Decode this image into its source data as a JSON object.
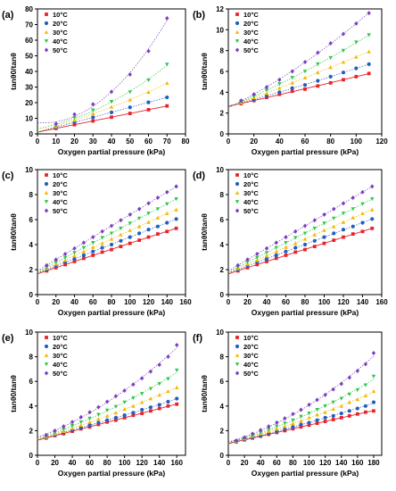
{
  "legend_labels": [
    "10°C",
    "20°C",
    "30°C",
    "40°C",
    "50°C"
  ],
  "colors": [
    "#e8232a",
    "#1f5fbf",
    "#f5b800",
    "#2ec84a",
    "#7a3fbf"
  ],
  "chart_data": [
    {
      "panel": "(a)",
      "type": "scatter",
      "xlabel": "Oxygen partial pressure (kPa)",
      "ylabel": "tanθ0/tanθ",
      "xlim": [
        0,
        80
      ],
      "ylim": [
        0,
        80
      ],
      "xticks": [
        0,
        10,
        20,
        30,
        40,
        50,
        60,
        70,
        80
      ],
      "yticks": [
        0,
        10,
        20,
        30,
        40,
        50,
        60,
        70,
        80
      ],
      "x": [
        10,
        20,
        30,
        40,
        50,
        60,
        70
      ],
      "series": [
        {
          "name": "10°C",
          "values": [
            3.5,
            5.9,
            8.3,
            10.7,
            13.1,
            15.5,
            17.9
          ]
        },
        {
          "name": "20°C",
          "values": [
            4.2,
            7.4,
            10.6,
            13.8,
            17.0,
            20.2,
            23.4
          ]
        },
        {
          "name": "30°C",
          "values": [
            4.8,
            8.9,
            13.0,
            17.3,
            21.8,
            26.8,
            32.5
          ]
        },
        {
          "name": "40°C",
          "values": [
            5.6,
            10.3,
            15.2,
            20.6,
            26.8,
            34.4,
            44.5
          ]
        },
        {
          "name": "50°C",
          "values": [
            6.5,
            12.5,
            19.0,
            27.0,
            38.0,
            53.0,
            74.0
          ]
        }
      ],
      "legend": "top-left"
    },
    {
      "panel": "(b)",
      "type": "scatter",
      "xlabel": "Oxygen partial pressure (kPa)",
      "ylabel": "tanθ0/tanθ",
      "xlim": [
        0,
        120
      ],
      "ylim": [
        0,
        12
      ],
      "xticks": [
        0,
        20,
        40,
        60,
        80,
        100,
        120
      ],
      "yticks": [
        0,
        2,
        4,
        6,
        8,
        10,
        12
      ],
      "x": [
        10,
        20,
        30,
        40,
        50,
        60,
        70,
        80,
        90,
        100,
        110
      ],
      "series": [
        {
          "name": "10°C",
          "values": [
            2.9,
            3.2,
            3.5,
            3.8,
            4.1,
            4.3,
            4.6,
            4.9,
            5.2,
            5.5,
            5.8
          ]
        },
        {
          "name": "20°C",
          "values": [
            3.0,
            3.3,
            3.7,
            4.0,
            4.4,
            4.7,
            5.1,
            5.5,
            5.9,
            6.3,
            6.7
          ]
        },
        {
          "name": "30°C",
          "values": [
            3.0,
            3.5,
            3.9,
            4.4,
            4.9,
            5.4,
            5.9,
            6.4,
            6.9,
            7.4,
            7.9
          ]
        },
        {
          "name": "40°C",
          "values": [
            3.1,
            3.6,
            4.2,
            4.8,
            5.4,
            6.0,
            6.7,
            7.3,
            8.0,
            8.8,
            9.5
          ]
        },
        {
          "name": "50°C",
          "values": [
            3.2,
            3.8,
            4.5,
            5.2,
            6.0,
            6.9,
            7.8,
            8.7,
            9.6,
            10.6,
            11.6
          ]
        }
      ],
      "legend": "top-left"
    },
    {
      "panel": "(c)",
      "type": "scatter",
      "xlabel": "Oxygen partial pressure (kPa)",
      "ylabel": "tanθ0/tanθ",
      "xlim": [
        0,
        160
      ],
      "ylim": [
        0,
        10
      ],
      "xticks": [
        0,
        20,
        40,
        60,
        80,
        100,
        120,
        140,
        160
      ],
      "yticks": [
        0,
        2,
        4,
        6,
        8,
        10
      ],
      "x": [
        10,
        20,
        30,
        40,
        50,
        60,
        70,
        80,
        90,
        100,
        110,
        120,
        130,
        140,
        150
      ],
      "series": [
        {
          "name": "10°C",
          "values": [
            1.9,
            2.15,
            2.4,
            2.65,
            2.9,
            3.15,
            3.4,
            3.6,
            3.85,
            4.1,
            4.35,
            4.6,
            4.85,
            5.05,
            5.3
          ]
        },
        {
          "name": "20°C",
          "values": [
            2.0,
            2.3,
            2.6,
            2.85,
            3.15,
            3.45,
            3.75,
            4.0,
            4.3,
            4.6,
            4.9,
            5.2,
            5.45,
            5.75,
            6.05
          ]
        },
        {
          "name": "30°C",
          "values": [
            2.1,
            2.45,
            2.75,
            3.1,
            3.45,
            3.8,
            4.1,
            4.45,
            4.8,
            5.15,
            5.45,
            5.8,
            6.15,
            6.5,
            6.8
          ]
        },
        {
          "name": "40°C",
          "values": [
            2.2,
            2.6,
            2.95,
            3.35,
            3.75,
            4.15,
            4.55,
            4.9,
            5.3,
            5.7,
            6.1,
            6.5,
            6.85,
            7.25,
            7.65
          ]
        },
        {
          "name": "50°C",
          "values": [
            2.35,
            2.8,
            3.25,
            3.7,
            4.15,
            4.6,
            5.05,
            5.5,
            5.95,
            6.4,
            6.85,
            7.3,
            7.75,
            8.2,
            8.65
          ]
        }
      ],
      "legend": "top-left"
    },
    {
      "panel": "(d)",
      "type": "scatter",
      "xlabel": "Oxygen partial pressure (kPa)",
      "ylabel": "tanθ0/tanθ",
      "xlim": [
        0,
        160
      ],
      "ylim": [
        0,
        10
      ],
      "xticks": [
        0,
        20,
        40,
        60,
        80,
        100,
        120,
        140,
        160
      ],
      "yticks": [
        0,
        2,
        4,
        6,
        8,
        10
      ],
      "x": [
        10,
        20,
        30,
        40,
        50,
        60,
        70,
        80,
        90,
        100,
        110,
        120,
        130,
        140,
        150
      ],
      "series": [
        {
          "name": "10°C",
          "values": [
            1.9,
            2.15,
            2.4,
            2.65,
            2.9,
            3.15,
            3.4,
            3.6,
            3.85,
            4.1,
            4.35,
            4.6,
            4.85,
            5.05,
            5.3
          ]
        },
        {
          "name": "20°C",
          "values": [
            2.0,
            2.3,
            2.6,
            2.85,
            3.15,
            3.45,
            3.75,
            4.0,
            4.3,
            4.6,
            4.9,
            5.2,
            5.45,
            5.75,
            6.05
          ]
        },
        {
          "name": "30°C",
          "values": [
            2.1,
            2.45,
            2.75,
            3.1,
            3.45,
            3.8,
            4.1,
            4.45,
            4.8,
            5.15,
            5.45,
            5.8,
            6.15,
            6.5,
            6.8
          ]
        },
        {
          "name": "40°C",
          "values": [
            2.2,
            2.6,
            2.95,
            3.35,
            3.75,
            4.15,
            4.55,
            4.9,
            5.3,
            5.7,
            6.1,
            6.5,
            6.85,
            7.25,
            7.65
          ]
        },
        {
          "name": "50°C",
          "values": [
            2.35,
            2.8,
            3.25,
            3.7,
            4.15,
            4.6,
            5.05,
            5.5,
            5.95,
            6.4,
            6.85,
            7.3,
            7.75,
            8.2,
            8.65
          ]
        }
      ],
      "legend": "top-left"
    },
    {
      "panel": "(e)",
      "type": "scatter",
      "xlabel": "Oxygen partial pressure (kPa)",
      "ylabel": "tanθ0/tanθ",
      "xlim": [
        0,
        170
      ],
      "ylim": [
        0,
        10
      ],
      "xticks": [
        0,
        20,
        40,
        60,
        80,
        100,
        120,
        140,
        160
      ],
      "yticks": [
        0,
        2,
        4,
        6,
        8,
        10
      ],
      "x": [
        10,
        20,
        30,
        40,
        50,
        60,
        70,
        80,
        90,
        100,
        110,
        120,
        130,
        140,
        150,
        160
      ],
      "series": [
        {
          "name": "10°C",
          "values": [
            1.4,
            1.6,
            1.75,
            1.95,
            2.15,
            2.3,
            2.5,
            2.7,
            2.85,
            3.05,
            3.25,
            3.4,
            3.6,
            3.8,
            4.0,
            4.15
          ]
        },
        {
          "name": "20°C",
          "values": [
            1.45,
            1.65,
            1.85,
            2.05,
            2.25,
            2.45,
            2.65,
            2.85,
            3.05,
            3.25,
            3.45,
            3.7,
            3.9,
            4.1,
            4.35,
            4.6
          ]
        },
        {
          "name": "30°C",
          "values": [
            1.5,
            1.75,
            1.95,
            2.2,
            2.45,
            2.7,
            2.95,
            3.2,
            3.45,
            3.75,
            4.0,
            4.3,
            4.6,
            4.9,
            5.2,
            5.5
          ]
        },
        {
          "name": "40°C",
          "values": [
            1.55,
            1.85,
            2.1,
            2.4,
            2.7,
            3.0,
            3.3,
            3.65,
            3.95,
            4.3,
            4.65,
            5.0,
            5.4,
            5.8,
            6.2,
            6.9
          ]
        },
        {
          "name": "50°C",
          "values": [
            1.65,
            2.0,
            2.35,
            2.7,
            3.1,
            3.5,
            3.9,
            4.35,
            4.8,
            5.25,
            5.75,
            6.25,
            6.8,
            7.35,
            8.0,
            8.95
          ]
        }
      ],
      "legend": "top-left"
    },
    {
      "panel": "(f)",
      "type": "scatter",
      "xlabel": "Oxygen partial pressure (kPa)",
      "ylabel": "tanθ0/tanθ",
      "xlim": [
        0,
        190
      ],
      "ylim": [
        0,
        10
      ],
      "xticks": [
        0,
        20,
        40,
        60,
        80,
        100,
        120,
        140,
        160,
        180
      ],
      "yticks": [
        0,
        2,
        4,
        6,
        8,
        10
      ],
      "x": [
        10,
        20,
        30,
        40,
        50,
        60,
        70,
        80,
        90,
        100,
        110,
        120,
        130,
        140,
        150,
        160,
        170,
        180
      ],
      "series": [
        {
          "name": "10°C",
          "values": [
            1.1,
            1.25,
            1.4,
            1.55,
            1.7,
            1.85,
            2.0,
            2.15,
            2.3,
            2.45,
            2.6,
            2.75,
            2.9,
            3.05,
            3.2,
            3.35,
            3.5,
            3.6
          ]
        },
        {
          "name": "20°C",
          "values": [
            1.1,
            1.3,
            1.45,
            1.6,
            1.8,
            1.95,
            2.15,
            2.3,
            2.5,
            2.65,
            2.85,
            3.05,
            3.2,
            3.4,
            3.6,
            3.8,
            4.0,
            4.3
          ]
        },
        {
          "name": "30°C",
          "values": [
            1.15,
            1.35,
            1.55,
            1.75,
            1.95,
            2.15,
            2.35,
            2.6,
            2.8,
            3.05,
            3.3,
            3.5,
            3.75,
            4.0,
            4.3,
            4.55,
            4.85,
            5.2
          ]
        },
        {
          "name": "40°C",
          "values": [
            1.15,
            1.4,
            1.6,
            1.85,
            2.1,
            2.35,
            2.6,
            2.85,
            3.15,
            3.4,
            3.7,
            4.0,
            4.3,
            4.6,
            4.95,
            5.3,
            5.7,
            6.4
          ]
        },
        {
          "name": "50°C",
          "values": [
            1.2,
            1.45,
            1.75,
            2.05,
            2.35,
            2.65,
            3.0,
            3.35,
            3.7,
            4.1,
            4.5,
            4.9,
            5.35,
            5.8,
            6.3,
            6.85,
            7.4,
            8.3
          ]
        }
      ],
      "legend": "top-left"
    }
  ]
}
